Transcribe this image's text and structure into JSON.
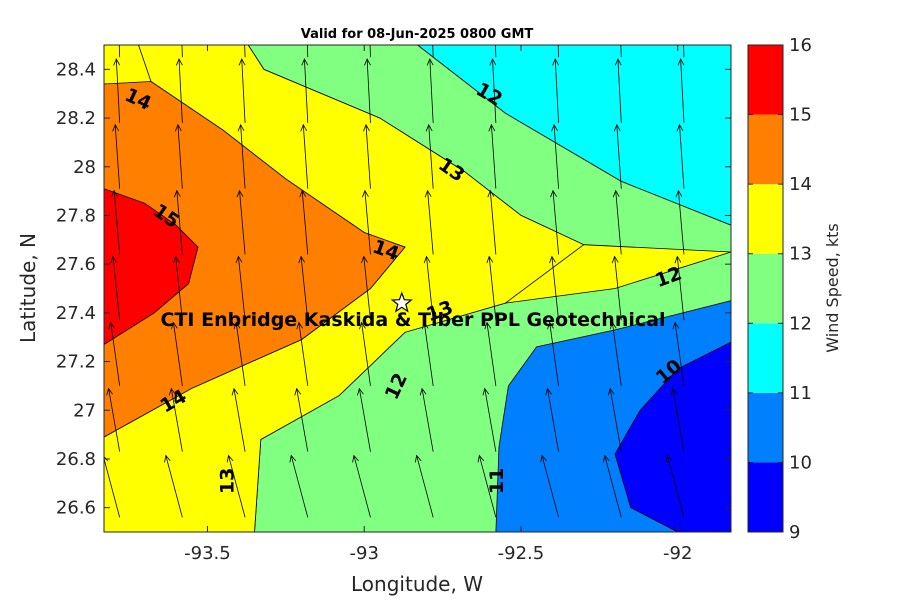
{
  "chart_data": {
    "type": "contour",
    "title": "Valid for 08-Jun-2025 0800 GMT",
    "xlabel": "Longitude, W",
    "ylabel": "Latitude, N",
    "xlim": [
      -93.83,
      -91.83
    ],
    "ylim": [
      26.5,
      28.5
    ],
    "xticks": [
      -93.5,
      -93,
      -92.5,
      -92
    ],
    "xtick_labels": [
      "-93.5",
      "-93",
      "-92.5",
      "-92"
    ],
    "yticks": [
      26.6,
      26.8,
      27,
      27.2,
      27.4,
      27.6,
      27.8,
      28,
      28.2,
      28.4
    ],
    "ytick_labels": [
      "26.6",
      "26.8",
      "27",
      "27.2",
      "27.4",
      "27.6",
      "27.8",
      "28",
      "28.2",
      "28.4"
    ],
    "colorbar": {
      "label": "Wind Speed, kts",
      "ticks": [
        "9",
        "10",
        "11",
        "12",
        "13",
        "14",
        "15",
        "16"
      ],
      "levels": [
        {
          "from": 9,
          "to": 10,
          "color": "#0000ff"
        },
        {
          "from": 10,
          "to": 11,
          "color": "#0080ff"
        },
        {
          "from": 11,
          "to": 12,
          "color": "#00ffff"
        },
        {
          "from": 12,
          "to": 13,
          "color": "#80ff80"
        },
        {
          "from": 13,
          "to": 14,
          "color": "#ffff00"
        },
        {
          "from": 14,
          "to": 15,
          "color": "#ff8000"
        },
        {
          "from": 15,
          "to": 16,
          "color": "#ff0000"
        }
      ]
    },
    "contour_regions": [
      {
        "level": 11,
        "color": "#00ffff",
        "polygon": [
          [
            -92.55,
            28.5
          ],
          [
            -91.83,
            28.5
          ],
          [
            -91.83,
            27.76
          ],
          [
            -92.18,
            27.94
          ],
          [
            -92.55,
            28.22
          ],
          [
            -92.83,
            28.5
          ]
        ]
      },
      {
        "level": 11,
        "color": "#00ffff",
        "polygon": [
          [
            -93.0,
            26.5
          ],
          [
            -91.83,
            26.5
          ],
          [
            -91.83,
            27.46
          ],
          [
            -92.3,
            27.33
          ],
          [
            -92.67,
            27.26
          ],
          [
            -92.9,
            27.12
          ],
          [
            -92.98,
            26.85
          ],
          [
            -93.02,
            26.6
          ]
        ]
      },
      {
        "level": 12,
        "color": "#80ff80",
        "polygon": [
          [
            -93.37,
            28.5
          ],
          [
            -92.83,
            28.5
          ],
          [
            -92.55,
            28.22
          ],
          [
            -92.18,
            27.94
          ],
          [
            -91.83,
            27.76
          ],
          [
            -91.83,
            27.65
          ],
          [
            -92.2,
            27.5
          ],
          [
            -92.55,
            27.44
          ],
          [
            -92.87,
            27.32
          ],
          [
            -93.08,
            27.06
          ],
          [
            -93.33,
            26.88
          ],
          [
            -93.35,
            26.5
          ],
          [
            -91.83,
            26.5
          ],
          [
            -91.83,
            27.65
          ],
          [
            -92.3,
            27.68
          ],
          [
            -92.5,
            27.8
          ],
          [
            -92.68,
            27.98
          ],
          [
            -92.95,
            28.2
          ],
          [
            -93.32,
            28.4
          ]
        ]
      },
      {
        "level": 13,
        "color": "#ffff00",
        "polygon": [
          [
            -93.72,
            28.5
          ],
          [
            -93.37,
            28.5
          ],
          [
            -93.32,
            28.4
          ],
          [
            -92.95,
            28.2
          ],
          [
            -92.68,
            27.98
          ],
          [
            -92.5,
            27.8
          ],
          [
            -92.3,
            27.68
          ],
          [
            -92.55,
            27.44
          ],
          [
            -92.87,
            27.32
          ],
          [
            -93.08,
            27.06
          ],
          [
            -93.33,
            26.88
          ],
          [
            -93.35,
            26.5
          ],
          [
            -93.83,
            26.5
          ],
          [
            -93.83,
            26.89
          ],
          [
            -93.55,
            27.09
          ],
          [
            -93.2,
            27.29
          ],
          [
            -92.98,
            27.5
          ],
          [
            -92.87,
            27.67
          ],
          [
            -93.0,
            27.73
          ],
          [
            -93.25,
            27.95
          ],
          [
            -93.45,
            28.15
          ],
          [
            -93.68,
            28.35
          ]
        ]
      },
      {
        "level": 14,
        "color": "#ff8000",
        "polygon": [
          [
            -93.83,
            28.34
          ],
          [
            -93.68,
            28.35
          ],
          [
            -93.45,
            28.15
          ],
          [
            -93.25,
            27.95
          ],
          [
            -93.0,
            27.73
          ],
          [
            -92.87,
            27.67
          ],
          [
            -92.98,
            27.5
          ],
          [
            -93.2,
            27.29
          ],
          [
            -93.55,
            27.09
          ],
          [
            -93.83,
            26.89
          ]
        ]
      },
      {
        "level": 15,
        "color": "#ff0000",
        "polygon": [
          [
            -93.83,
            27.91
          ],
          [
            -93.7,
            27.85
          ],
          [
            -93.6,
            27.76
          ],
          [
            -93.53,
            27.67
          ],
          [
            -93.56,
            27.52
          ],
          [
            -93.67,
            27.4
          ],
          [
            -93.83,
            27.27
          ]
        ]
      },
      {
        "level": 10,
        "color": "#0080ff",
        "polygon": [
          [
            -92.58,
            26.5
          ],
          [
            -91.83,
            26.5
          ],
          [
            -91.83,
            27.45
          ],
          [
            -92.2,
            27.33
          ],
          [
            -92.45,
            27.26
          ],
          [
            -92.54,
            27.1
          ],
          [
            -92.57,
            26.85
          ]
        ]
      },
      {
        "level": 9,
        "color": "#0000ff",
        "polygon": [
          [
            -92.0,
            26.5
          ],
          [
            -91.83,
            26.5
          ],
          [
            -91.83,
            27.28
          ],
          [
            -92.0,
            27.17
          ],
          [
            -92.12,
            27.0
          ],
          [
            -92.2,
            26.82
          ],
          [
            -92.15,
            26.6
          ]
        ]
      }
    ],
    "contour_labels": [
      {
        "text": "14",
        "x": -93.72,
        "y": 28.28,
        "angle": 25
      },
      {
        "text": "12",
        "x": -92.6,
        "y": 28.3,
        "angle": 30
      },
      {
        "text": "13",
        "x": -92.72,
        "y": 27.99,
        "angle": 35
      },
      {
        "text": "15",
        "x": -93.63,
        "y": 27.8,
        "angle": 35
      },
      {
        "text": "14",
        "x": -92.93,
        "y": 27.66,
        "angle": 20
      },
      {
        "text": "12",
        "x": -92.03,
        "y": 27.55,
        "angle": -20
      },
      {
        "text": "13",
        "x": -92.76,
        "y": 27.41,
        "angle": -20
      },
      {
        "text": "12",
        "x": -92.9,
        "y": 27.1,
        "angle": -65
      },
      {
        "text": "10",
        "x": -92.03,
        "y": 27.16,
        "angle": -40
      },
      {
        "text": "14",
        "x": -93.61,
        "y": 27.04,
        "angle": -30
      },
      {
        "text": "13",
        "x": -93.44,
        "y": 26.71,
        "angle": -90
      },
      {
        "text": "11",
        "x": -92.58,
        "y": 26.71,
        "angle": -90
      }
    ],
    "site": {
      "name": "CTI Enbridge  Kaskida & Tiber PPL Geotechnical",
      "x": -92.88,
      "y": 27.44
    },
    "wind_arrows": {
      "x": [
        -93.78,
        -93.58,
        -93.38,
        -93.18,
        -92.98,
        -92.78,
        -92.58,
        -92.38,
        -92.18,
        -91.98
      ],
      "y": [
        26.56,
        26.83,
        27.1,
        27.37,
        27.64,
        27.91,
        28.18,
        28.45
      ],
      "direction_deg": [
        345,
        350,
        352,
        354,
        355,
        356,
        357,
        358
      ]
    }
  }
}
